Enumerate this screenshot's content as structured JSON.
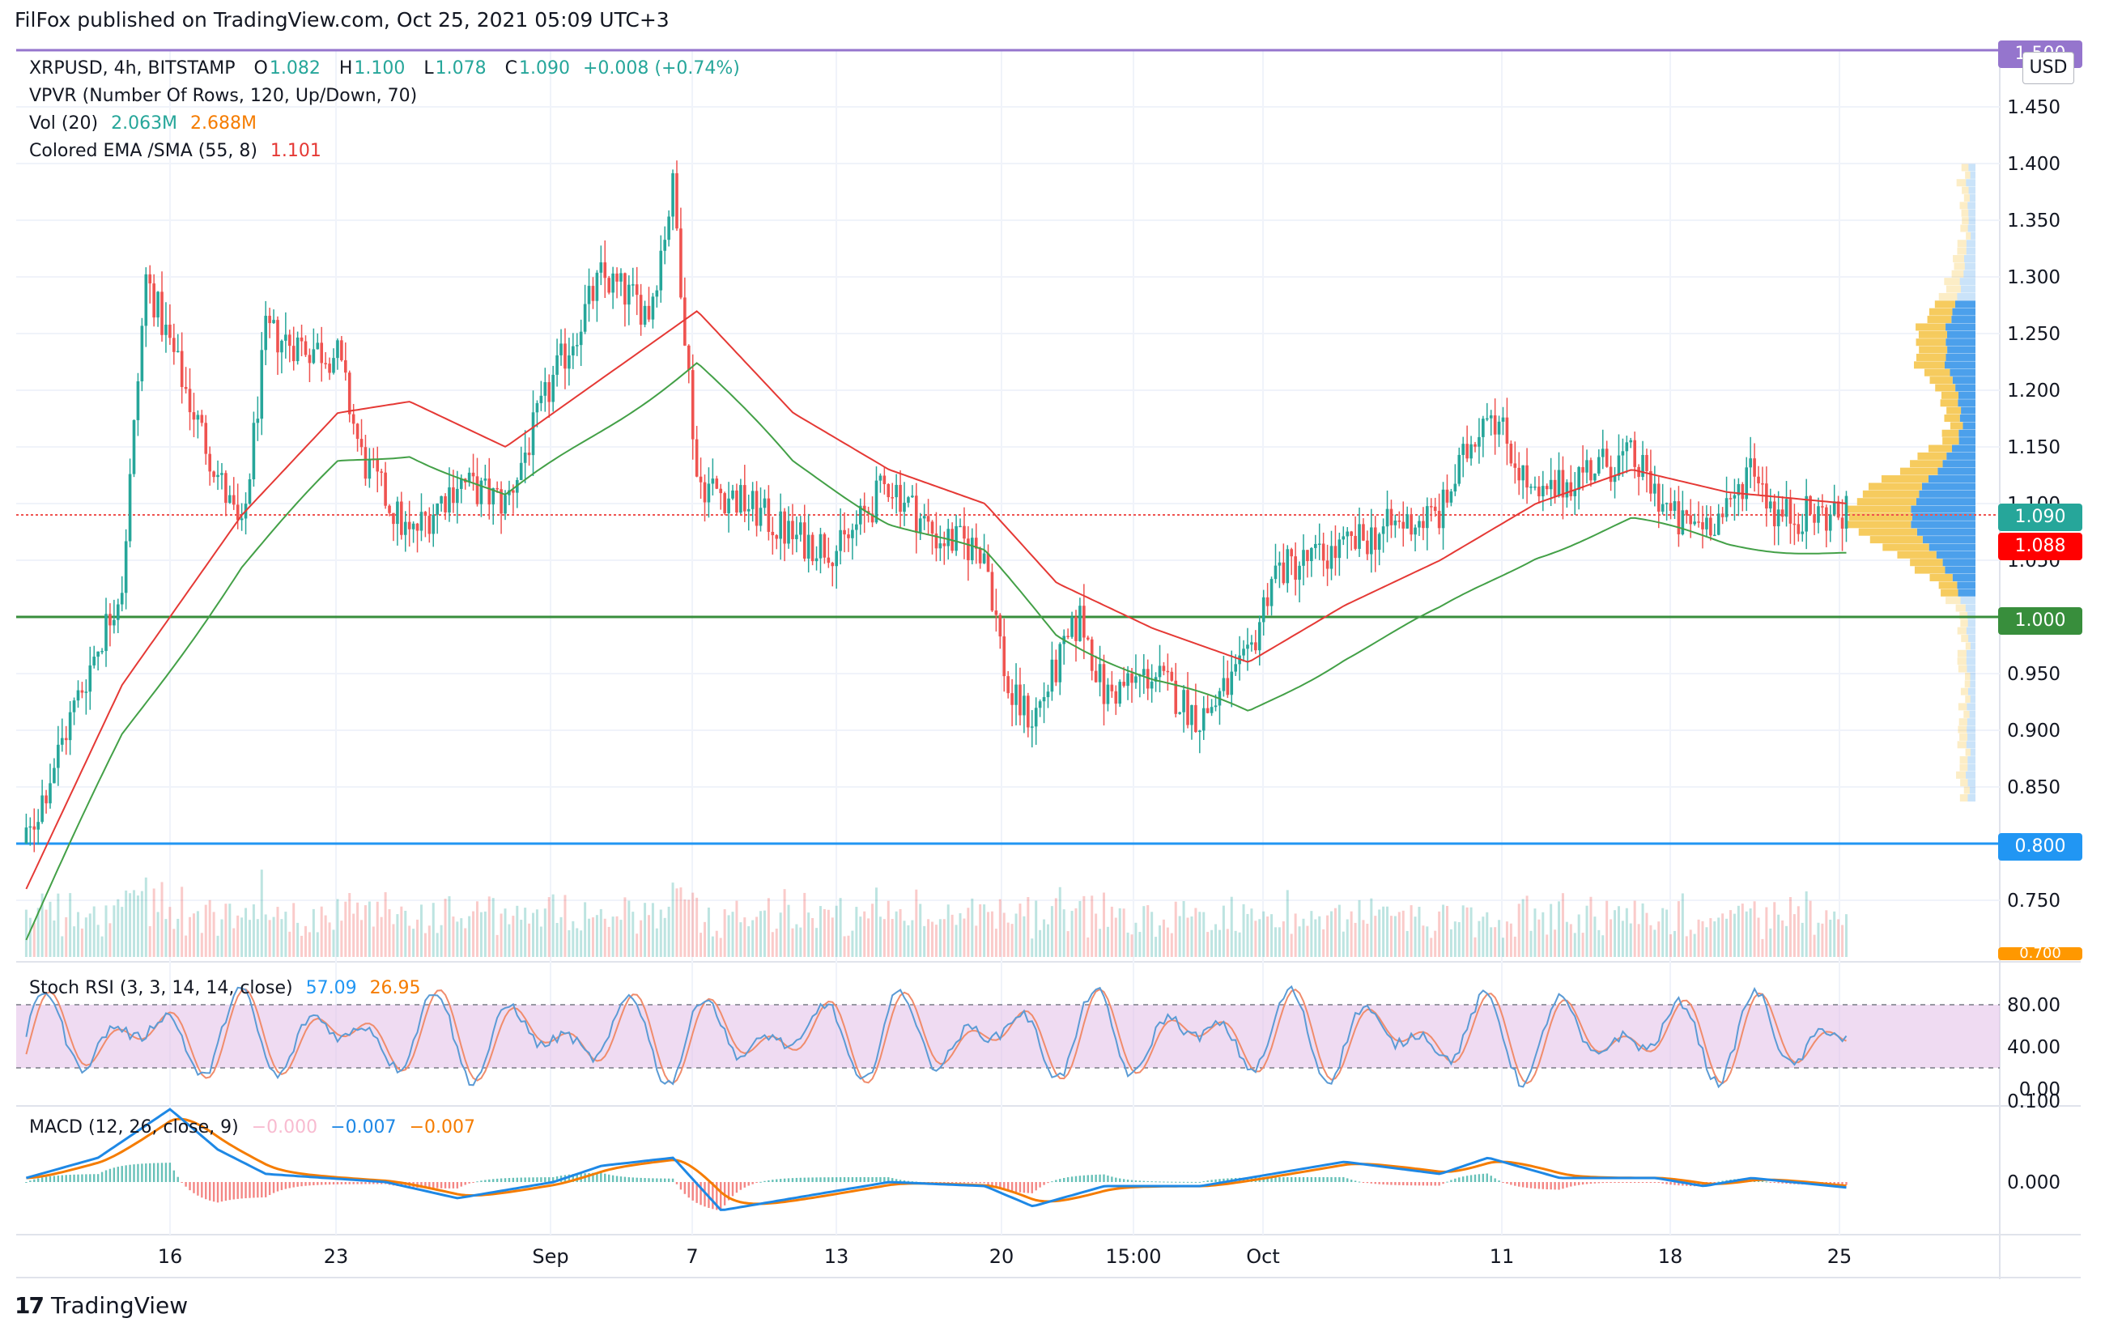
{
  "header": {
    "published": "FilFox published on TradingView.com, Oct 25, 2021 05:09 UTC+3"
  },
  "footer": {
    "brand": "TradingView",
    "logo_glyph": "17"
  },
  "legend": {
    "symbol": "XRPUSD, 4h, BITSTAMP",
    "o_label": "O",
    "o": "1.082",
    "h_label": "H",
    "h": "1.100",
    "l_label": "L",
    "l": "1.078",
    "c_label": "C",
    "c": "1.090",
    "change": "+0.008 (+0.74%)",
    "vpvr": "VPVR (Number Of Rows, 120, Up/Down, 70)",
    "vol_label": "Vol (20)",
    "vol1": "2.063M",
    "vol2": "2.688M",
    "ema_label": "Colored EMA /SMA (55, 8)",
    "ema_value": "1.101",
    "stoch_label": "Stoch RSI (3, 3, 14, 14, close)",
    "stoch_k": "57.09",
    "stoch_d": "26.95",
    "macd_label": "MACD (12, 26, close, 9)",
    "macd_hist": "−0.000",
    "macd_line": "−0.007",
    "macd_signal": "−0.007"
  },
  "currency": "USD",
  "price_labels": {
    "top": "1.500",
    "last": "1.090",
    "ema": "1.088",
    "level_1": "1.000",
    "level_2": "0.800",
    "bottom": "0.700"
  },
  "colors": {
    "up": "#26a69a",
    "down": "#ef5350",
    "ema_red": "#e53935",
    "sma_green": "#43a047",
    "purple_line": "#9575cd",
    "green_line": "#388e3c",
    "blue_line": "#2196f3",
    "stoch_k": "#5b9bd5",
    "stoch_d": "#f08c6c",
    "macd_line": "#1e88e5",
    "macd_signal": "#f57c00",
    "vp_up": "#2d8fe8",
    "vp_down": "#f5c242"
  },
  "chart_data": [
    {
      "type": "candlestick",
      "title": "XRPUSD, 4h, BITSTAMP",
      "ylim": [
        0.7,
        1.5
      ],
      "y_ticks": [
        "1.450",
        "1.400",
        "1.350",
        "1.300",
        "1.250",
        "1.200",
        "1.150",
        "1.100",
        "1.050",
        "1.000",
        "0.950",
        "0.900",
        "0.850",
        "0.800",
        "0.750"
      ],
      "x_ticks": [
        "16",
        "23",
        "Sep",
        "7",
        "13",
        "20",
        "15:00",
        "Oct",
        "11",
        "18",
        "25"
      ],
      "anchors": [
        {
          "x": "Aug 10",
          "y": 0.8
        },
        {
          "x": "Aug 12",
          "y": 0.92
        },
        {
          "x": "Aug 14",
          "y": 1.03
        },
        {
          "x": "Aug 15",
          "y": 1.3
        },
        {
          "x": "Aug 17",
          "y": 1.18
        },
        {
          "x": "Aug 19",
          "y": 1.07
        },
        {
          "x": "Aug 20",
          "y": 1.25
        },
        {
          "x": "Aug 23",
          "y": 1.23
        },
        {
          "x": "Aug 24",
          "y": 1.14
        },
        {
          "x": "Aug 26",
          "y": 1.07
        },
        {
          "x": "Aug 28",
          "y": 1.12
        },
        {
          "x": "Aug 30",
          "y": 1.1
        },
        {
          "x": "Sep 1",
          "y": 1.21
        },
        {
          "x": "Sep 3",
          "y": 1.3
        },
        {
          "x": "Sep 5",
          "y": 1.27
        },
        {
          "x": "Sep 6",
          "y": 1.38
        },
        {
          "x": "Sep 7",
          "y": 1.12
        },
        {
          "x": "Sep 9",
          "y": 1.1
        },
        {
          "x": "Sep 11",
          "y": 1.07
        },
        {
          "x": "Sep 13",
          "y": 1.06
        },
        {
          "x": "Sep 15",
          "y": 1.12
        },
        {
          "x": "Sep 17",
          "y": 1.07
        },
        {
          "x": "Sep 19",
          "y": 1.06
        },
        {
          "x": "Sep 20",
          "y": 0.93
        },
        {
          "x": "Sep 21",
          "y": 0.91
        },
        {
          "x": "Sep 23",
          "y": 1.0
        },
        {
          "x": "Sep 24",
          "y": 0.93
        },
        {
          "x": "Sep 26",
          "y": 0.95
        },
        {
          "x": "Sep 28",
          "y": 0.91
        },
        {
          "x": "Sep 30",
          "y": 0.96
        },
        {
          "x": "Oct 1",
          "y": 1.04
        },
        {
          "x": "Oct 4",
          "y": 1.06
        },
        {
          "x": "Oct 6",
          "y": 1.08
        },
        {
          "x": "Oct 8",
          "y": 1.09
        },
        {
          "x": "Oct 10",
          "y": 1.19
        },
        {
          "x": "Oct 12",
          "y": 1.1
        },
        {
          "x": "Oct 14",
          "y": 1.13
        },
        {
          "x": "Oct 16",
          "y": 1.14
        },
        {
          "x": "Oct 18",
          "y": 1.08
        },
        {
          "x": "Oct 20",
          "y": 1.09
        },
        {
          "x": "Oct 21",
          "y": 1.14
        },
        {
          "x": "Oct 22",
          "y": 1.09
        },
        {
          "x": "Oct 25",
          "y": 1.09
        }
      ],
      "horizontal_levels": [
        1.5,
        1.0,
        0.8
      ],
      "ema_anchors": [
        {
          "x": "Aug 10",
          "y": 0.75
        },
        {
          "x": "Aug 14",
          "y": 0.93
        },
        {
          "x": "Aug 19",
          "y": 1.08
        },
        {
          "x": "Aug 23",
          "y": 1.17
        },
        {
          "x": "Aug 26",
          "y": 1.18
        },
        {
          "x": "Aug 30",
          "y": 1.14
        },
        {
          "x": "Sep 3",
          "y": 1.2
        },
        {
          "x": "Sep 7",
          "y": 1.26
        },
        {
          "x": "Sep 11",
          "y": 1.17
        },
        {
          "x": "Sep 15",
          "y": 1.12
        },
        {
          "x": "Sep 19",
          "y": 1.09
        },
        {
          "x": "Sep 22",
          "y": 1.02
        },
        {
          "x": "Sep 26",
          "y": 0.98
        },
        {
          "x": "Sep 30",
          "y": 0.95
        },
        {
          "x": "Oct 4",
          "y": 1.0
        },
        {
          "x": "Oct 8",
          "y": 1.04
        },
        {
          "x": "Oct 12",
          "y": 1.09
        },
        {
          "x": "Oct 16",
          "y": 1.12
        },
        {
          "x": "Oct 20",
          "y": 1.1
        },
        {
          "x": "Oct 25",
          "y": 1.09
        }
      ]
    },
    {
      "type": "line",
      "title": "Stoch RSI (3, 3, 14, 14, close)",
      "ylim": [
        0,
        100
      ],
      "y_ticks": [
        "80.00",
        "40.00",
        "0.00"
      ],
      "band": [
        20,
        80
      ],
      "last": {
        "k": 57.09,
        "d": 26.95
      }
    },
    {
      "type": "line",
      "title": "MACD (12, 26, close, 9)",
      "ylim": [
        -0.03,
        0.1
      ],
      "y_ticks": [
        "0.100",
        "0.000"
      ],
      "anchors": [
        {
          "x": "Aug 10",
          "y": 0.005
        },
        {
          "x": "Aug 13",
          "y": 0.03
        },
        {
          "x": "Aug 16",
          "y": 0.09
        },
        {
          "x": "Aug 18",
          "y": 0.04
        },
        {
          "x": "Aug 20",
          "y": 0.01
        },
        {
          "x": "Aug 25",
          "y": 0.0
        },
        {
          "x": "Aug 28",
          "y": -0.02
        },
        {
          "x": "Sep 1",
          "y": 0.0
        },
        {
          "x": "Sep 3",
          "y": 0.02
        },
        {
          "x": "Sep 6",
          "y": 0.03
        },
        {
          "x": "Sep 8",
          "y": -0.035
        },
        {
          "x": "Sep 11",
          "y": -0.02
        },
        {
          "x": "Sep 15",
          "y": 0.0
        },
        {
          "x": "Sep 19",
          "y": -0.005
        },
        {
          "x": "Sep 21",
          "y": -0.03
        },
        {
          "x": "Sep 24",
          "y": -0.005
        },
        {
          "x": "Sep 28",
          "y": -0.005
        },
        {
          "x": "Oct 1",
          "y": 0.01
        },
        {
          "x": "Oct 4",
          "y": 0.025
        },
        {
          "x": "Oct 8",
          "y": 0.01
        },
        {
          "x": "Oct 10",
          "y": 0.03
        },
        {
          "x": "Oct 13",
          "y": 0.005
        },
        {
          "x": "Oct 17",
          "y": 0.005
        },
        {
          "x": "Oct 19",
          "y": -0.005
        },
        {
          "x": "Oct 21",
          "y": 0.005
        },
        {
          "x": "Oct 25",
          "y": -0.007
        }
      ],
      "last": {
        "hist": -0.0,
        "macd": -0.007,
        "signal": -0.007
      }
    }
  ]
}
